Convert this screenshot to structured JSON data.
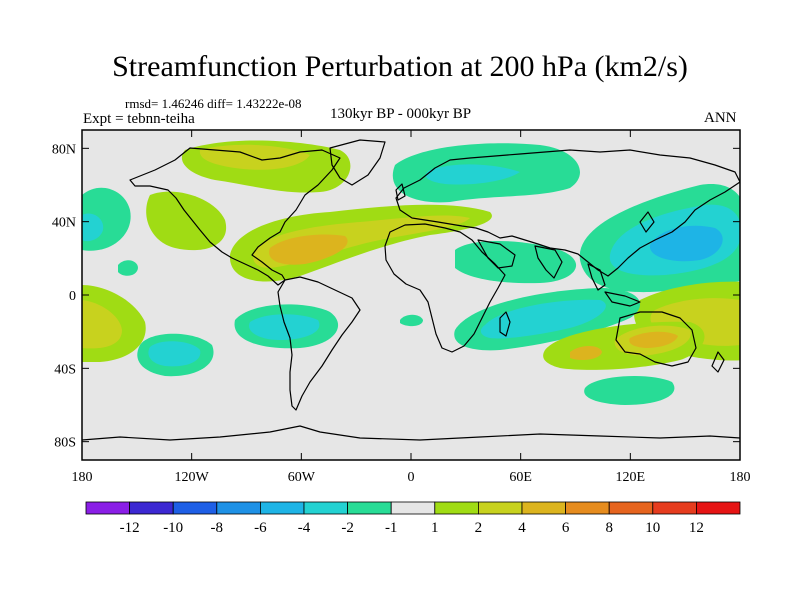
{
  "header": {
    "title": "Streamfunction Perturbation at 200 hPa (km2/s)",
    "subtitle": "rmsd= 1.46246 diff= 1.43222e-08",
    "left_label": "Expt = tebnn-teiha",
    "center_label": "130kyr BP - 000kyr BP",
    "right_label": "ANN"
  },
  "axes": {
    "lat_labels": [
      "80N",
      "40N",
      "0",
      "40S",
      "80S"
    ],
    "lat_values": [
      80,
      40,
      0,
      -40,
      -80
    ],
    "lon_labels": [
      "180",
      "120W",
      "60W",
      "0",
      "60E",
      "120E",
      "180"
    ],
    "lon_values": [
      -180,
      -120,
      -60,
      0,
      60,
      120,
      180
    ]
  },
  "colorbar": {
    "labels": [
      "-12",
      "-10",
      "-8",
      "-6",
      "-4",
      "-2",
      "-1",
      "1",
      "2",
      "4",
      "6",
      "8",
      "10",
      "12"
    ],
    "colors": [
      "#8a1ee6",
      "#3c28d2",
      "#1e5fe6",
      "#1e91e6",
      "#1eb4e6",
      "#23d2d2",
      "#28dc96",
      "#e6e6e6",
      "#a0dc14",
      "#c8d21e",
      "#dcb41e",
      "#e68c1e",
      "#e6641e",
      "#e63c1e",
      "#e61414"
    ]
  },
  "map_data": {
    "type": "filled-contour",
    "projection": "cylindrical-equidistant",
    "regions": [
      {
        "name": "north-america-arctic-positive",
        "lon": -85,
        "lat": 72,
        "color": "#a0dc14"
      },
      {
        "name": "scandinavia-russia-negative",
        "lon": 45,
        "lat": 68,
        "color": "#28dc96"
      },
      {
        "name": "north-atlantic-positive-belt",
        "lon": -45,
        "lat": 28,
        "color": "#dcb41e"
      },
      {
        "name": "east-asia-pacific-negative",
        "lon": 140,
        "lat": 30,
        "color": "#1eb4e6"
      },
      {
        "name": "south-atlantic-negative",
        "lon": -65,
        "lat": -18,
        "color": "#23d2d2"
      },
      {
        "name": "indian-ocean-negative",
        "lon": 60,
        "lat": -15,
        "color": "#23d2d2"
      },
      {
        "name": "australia-positive",
        "lon": 125,
        "lat": -25,
        "color": "#dcb41e"
      },
      {
        "name": "south-pacific-positive",
        "lon": -170,
        "lat": -10,
        "color": "#c8d21e"
      },
      {
        "name": "south-pacific-negative",
        "lon": -120,
        "lat": -38,
        "color": "#23d2d2"
      },
      {
        "name": "southern-ocean-negative",
        "lon": 125,
        "lat": -58,
        "color": "#28dc96"
      }
    ]
  }
}
